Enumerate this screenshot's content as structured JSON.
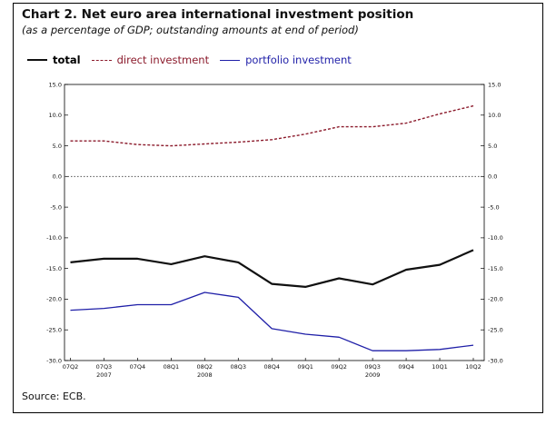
{
  "title": "Chart 2. Net euro area international investment position",
  "subtitle": "(as a percentage of GDP; outstanding amounts at end of period)",
  "source": "Source: ECB.",
  "colors": {
    "total": "#111111",
    "direct": "#8b1a2b",
    "portfolio": "#1f1fa8",
    "zero_line": "#555555"
  },
  "legend": [
    {
      "label": "total",
      "color": "#111111",
      "style": "solid-thick"
    },
    {
      "label": "direct investment",
      "color": "#8b1a2b",
      "style": "dashed"
    },
    {
      "label": "portfolio investment",
      "color": "#1f1fa8",
      "style": "solid"
    }
  ],
  "chart_data": {
    "type": "line",
    "title": "Chart 2. Net euro area international investment position",
    "subtitle": "(as a percentage of GDP; outstanding amounts at end of period)",
    "categories": [
      "07Q2",
      "07Q3",
      "07Q4",
      "08Q1",
      "08Q2",
      "08Q3",
      "08Q4",
      "09Q1",
      "09Q2",
      "09Q3",
      "09Q4",
      "10Q1",
      "10Q2"
    ],
    "year_labels": [
      {
        "label": "2007",
        "category": "07Q3"
      },
      {
        "label": "2008",
        "category": "08Q2"
      },
      {
        "label": "2009",
        "category": "09Q3"
      }
    ],
    "series": [
      {
        "name": "total",
        "values": [
          -14.0,
          -13.4,
          -13.4,
          -14.3,
          -13.0,
          -14.0,
          -17.5,
          -18.0,
          -16.6,
          -17.6,
          -15.2,
          -14.4,
          -12.0
        ]
      },
      {
        "name": "direct investment",
        "values": [
          5.8,
          5.8,
          5.2,
          5.0,
          5.3,
          5.6,
          6.0,
          6.9,
          8.1,
          8.1,
          8.7,
          10.2,
          11.5
        ]
      },
      {
        "name": "portfolio investment",
        "values": [
          -21.8,
          -21.5,
          -20.9,
          -20.9,
          -18.9,
          -19.7,
          -24.8,
          -25.7,
          -26.2,
          -28.4,
          -28.4,
          -28.2,
          -27.5
        ]
      }
    ],
    "ylim": [
      -30,
      15
    ],
    "yticks": [
      "15.0",
      "10.0",
      "5.0",
      "0.0",
      "-5.0",
      "-10.0",
      "-15.0",
      "-20.0",
      "-25.0",
      "-30.0"
    ],
    "ytick_values": [
      15,
      10,
      5,
      0,
      -5,
      -10,
      -15,
      -20,
      -25,
      -30
    ],
    "zero_line": "dotted",
    "grid": false,
    "legend_position": "top-left"
  }
}
